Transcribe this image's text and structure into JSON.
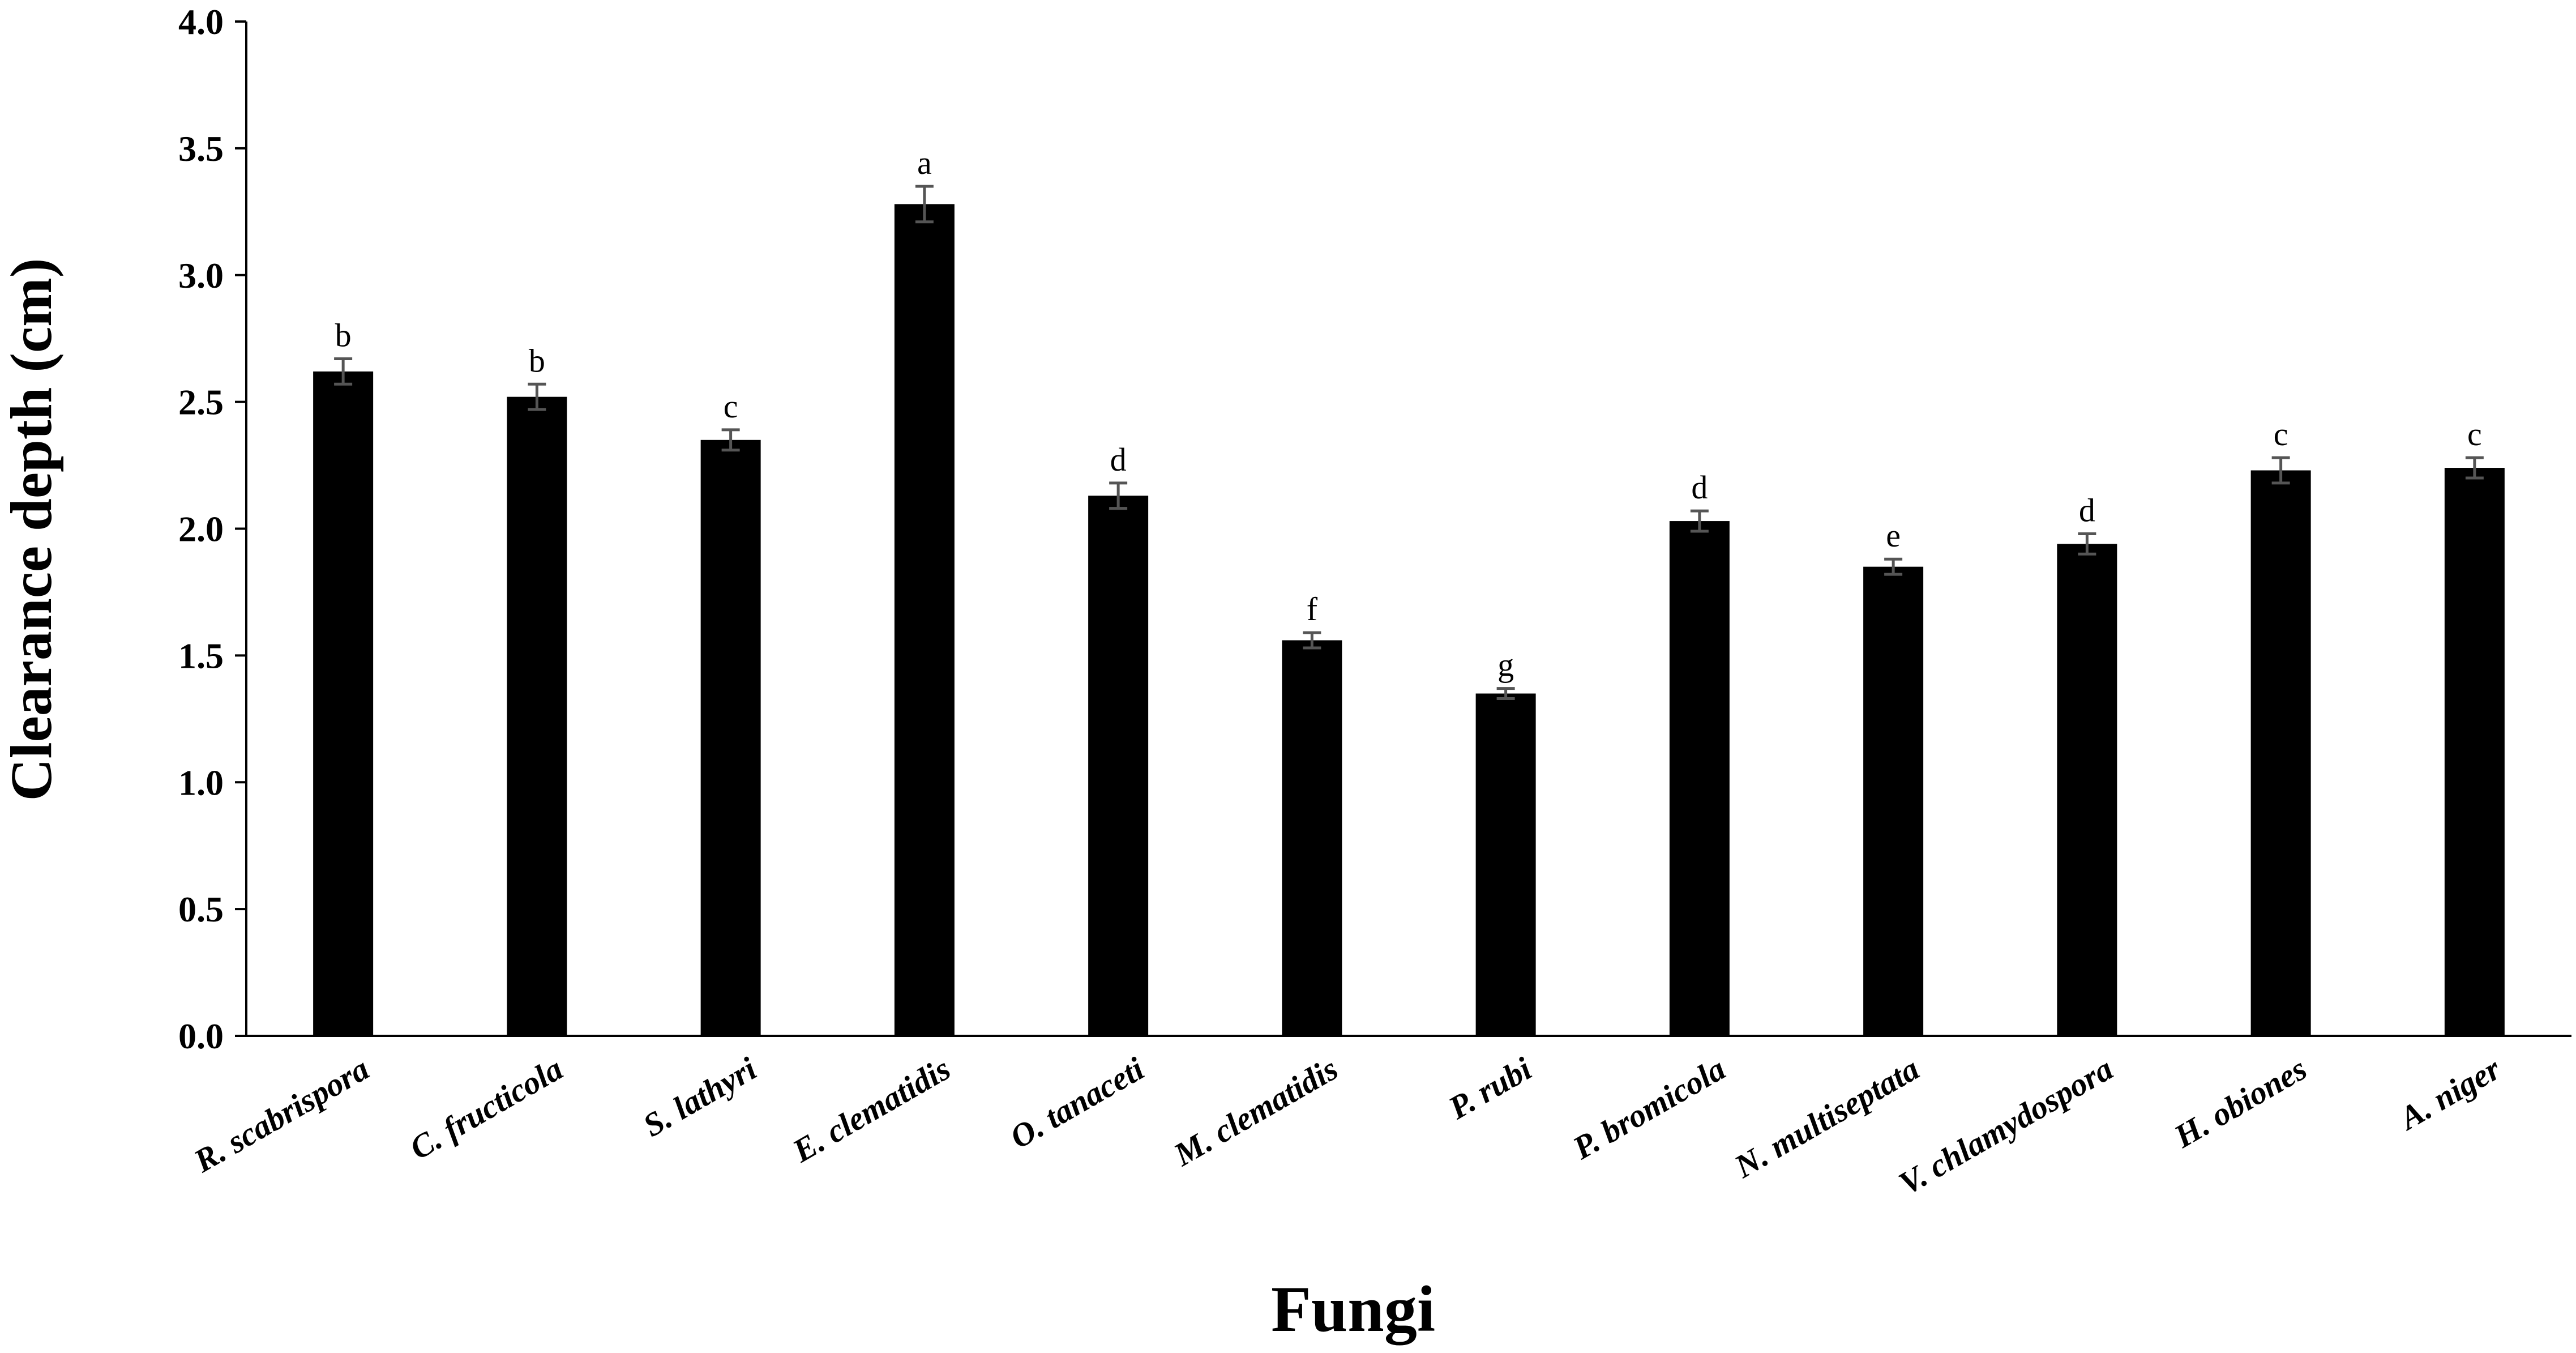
{
  "chart_data": {
    "type": "bar",
    "x_label": "Fungi",
    "y_label": "Clearance depth (cm)",
    "categories": [
      "R. scabrispora",
      "C. fructicola",
      "S. lathyri",
      "E. clematidis",
      "O. tanaceti",
      "M. clematidis",
      "P. rubi",
      "P. bromicola",
      "N. multiseptata",
      "V. chlamydospora",
      "H. obiones",
      "A. niger"
    ],
    "values": [
      2.62,
      2.52,
      2.35,
      3.28,
      2.13,
      1.56,
      1.35,
      2.03,
      1.85,
      1.94,
      2.23,
      2.24
    ],
    "errors": [
      0.05,
      0.05,
      0.04,
      0.07,
      0.05,
      0.03,
      0.02,
      0.04,
      0.03,
      0.04,
      0.05,
      0.04
    ],
    "letters": [
      "b",
      "b",
      "c",
      "a",
      "d",
      "f",
      "g",
      "d",
      "e",
      "d",
      "c",
      "c"
    ],
    "color": "#000000",
    "error_color": "#555555",
    "ylim": [
      0,
      4
    ],
    "yticks": [
      {
        "value": 0,
        "label": "0.0"
      },
      0.5,
      {
        "value": 1,
        "label": "1.0"
      },
      1.5,
      {
        "value": 2,
        "label": "2.0"
      },
      2.5,
      {
        "value": 3,
        "label": "3.0"
      },
      3.5,
      {
        "value": 4,
        "label": "4.0"
      }
    ],
    "grid": false
  }
}
